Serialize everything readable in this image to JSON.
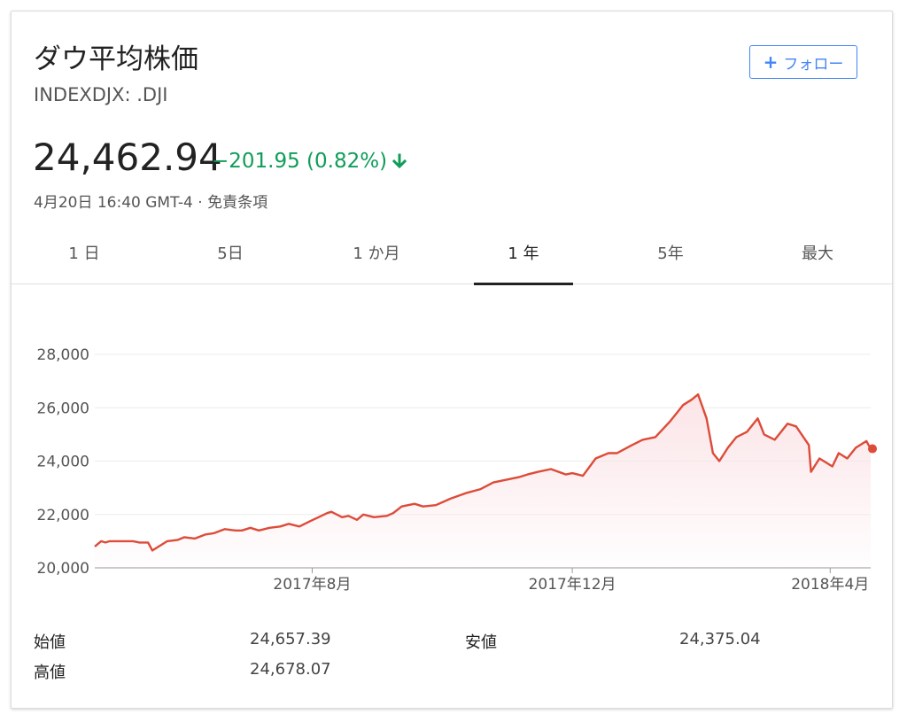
{
  "header": {
    "title": "ダウ平均株価",
    "ticker": "INDEXDJX: .DJI",
    "follow_label": "フォロー",
    "follow_icon": "plus-icon",
    "price": "24,462.94",
    "change": "−201.95 (0.82%)",
    "change_color": "#0f9d58",
    "change_icon": "arrow-down-icon",
    "timestamp": "4月20日 16:40 GMT-4 · 免責条項"
  },
  "tabs": [
    {
      "label": "1 日"
    },
    {
      "label": "5日"
    },
    {
      "label": "1 か月"
    },
    {
      "label": "1 年",
      "active": true
    },
    {
      "label": "5年"
    },
    {
      "label": "最大"
    }
  ],
  "chart_data": {
    "type": "area",
    "xlabel": "",
    "ylabel": "",
    "ylim": [
      20000,
      28000
    ],
    "yticks": [
      "28,000",
      "26,000",
      "24,000",
      "22,000",
      "20,000"
    ],
    "ytick_values": [
      28000,
      26000,
      24000,
      22000,
      20000
    ],
    "xticks": [
      {
        "label": "2017年8月",
        "x": "2017-08-01"
      },
      {
        "label": "2017年12月",
        "x": "2017-12-01"
      },
      {
        "label": "2018年4月",
        "x": "2018-04-01"
      }
    ],
    "line_color": "#dd4b39",
    "fill_color": "#fbe3e6",
    "grid": true,
    "last_value": 24462.94,
    "x": [
      "2017-04-21",
      "2017-04-24",
      "2017-04-26",
      "2017-04-28",
      "2017-05-02",
      "2017-05-05",
      "2017-05-09",
      "2017-05-12",
      "2017-05-16",
      "2017-05-18",
      "2017-05-22",
      "2017-05-25",
      "2017-05-30",
      "2017-06-02",
      "2017-06-07",
      "2017-06-12",
      "2017-06-16",
      "2017-06-21",
      "2017-06-26",
      "2017-06-29",
      "2017-07-03",
      "2017-07-07",
      "2017-07-12",
      "2017-07-17",
      "2017-07-21",
      "2017-07-26",
      "2017-07-31",
      "2017-08-04",
      "2017-08-08",
      "2017-08-10",
      "2017-08-15",
      "2017-08-18",
      "2017-08-22",
      "2017-08-25",
      "2017-08-30",
      "2017-09-05",
      "2017-09-08",
      "2017-09-12",
      "2017-09-18",
      "2017-09-22",
      "2017-09-28",
      "2017-10-05",
      "2017-10-12",
      "2017-10-19",
      "2017-10-25",
      "2017-10-31",
      "2017-11-06",
      "2017-11-10",
      "2017-11-15",
      "2017-11-21",
      "2017-11-28",
      "2017-12-01",
      "2017-12-06",
      "2017-12-12",
      "2017-12-18",
      "2017-12-22",
      "2017-12-29",
      "2018-01-03",
      "2018-01-09",
      "2018-01-16",
      "2018-01-22",
      "2018-01-26",
      "2018-01-29",
      "2018-02-02",
      "2018-02-05",
      "2018-02-08",
      "2018-02-12",
      "2018-02-16",
      "2018-02-21",
      "2018-02-26",
      "2018-03-01",
      "2018-03-06",
      "2018-03-12",
      "2018-03-16",
      "2018-03-22",
      "2018-03-23",
      "2018-03-27",
      "2018-04-02",
      "2018-04-05",
      "2018-04-09",
      "2018-04-13",
      "2018-04-18",
      "2018-04-20"
    ],
    "series": [
      {
        "values": [
          20800,
          21000,
          20950,
          21000,
          21000,
          21000,
          21000,
          20950,
          20950,
          20650,
          20850,
          21000,
          21050,
          21150,
          21100,
          21250,
          21300,
          21450,
          21400,
          21400,
          21500,
          21400,
          21500,
          21550,
          21650,
          21550,
          21750,
          21900,
          22050,
          22100,
          21900,
          21950,
          21800,
          22000,
          21900,
          21950,
          22050,
          22300,
          22400,
          22300,
          22350,
          22600,
          22800,
          22950,
          23200,
          23300,
          23400,
          23500,
          23600,
          23700,
          23500,
          23550,
          23450,
          24100,
          24300,
          24300,
          24600,
          24800,
          24900,
          25500,
          26100,
          26300,
          26500,
          25600,
          24300,
          24000,
          24500,
          24900,
          25100,
          25600,
          25000,
          24800,
          25400,
          25300,
          24600,
          23600,
          24100,
          23800,
          24300,
          24100,
          24500,
          24750,
          24462.94
        ]
      }
    ]
  },
  "stats": [
    {
      "label": "始値",
      "value": "24,657.39"
    },
    {
      "label": "高値",
      "value": "24,678.07"
    },
    {
      "label": "安値",
      "value": "24,375.04"
    }
  ]
}
